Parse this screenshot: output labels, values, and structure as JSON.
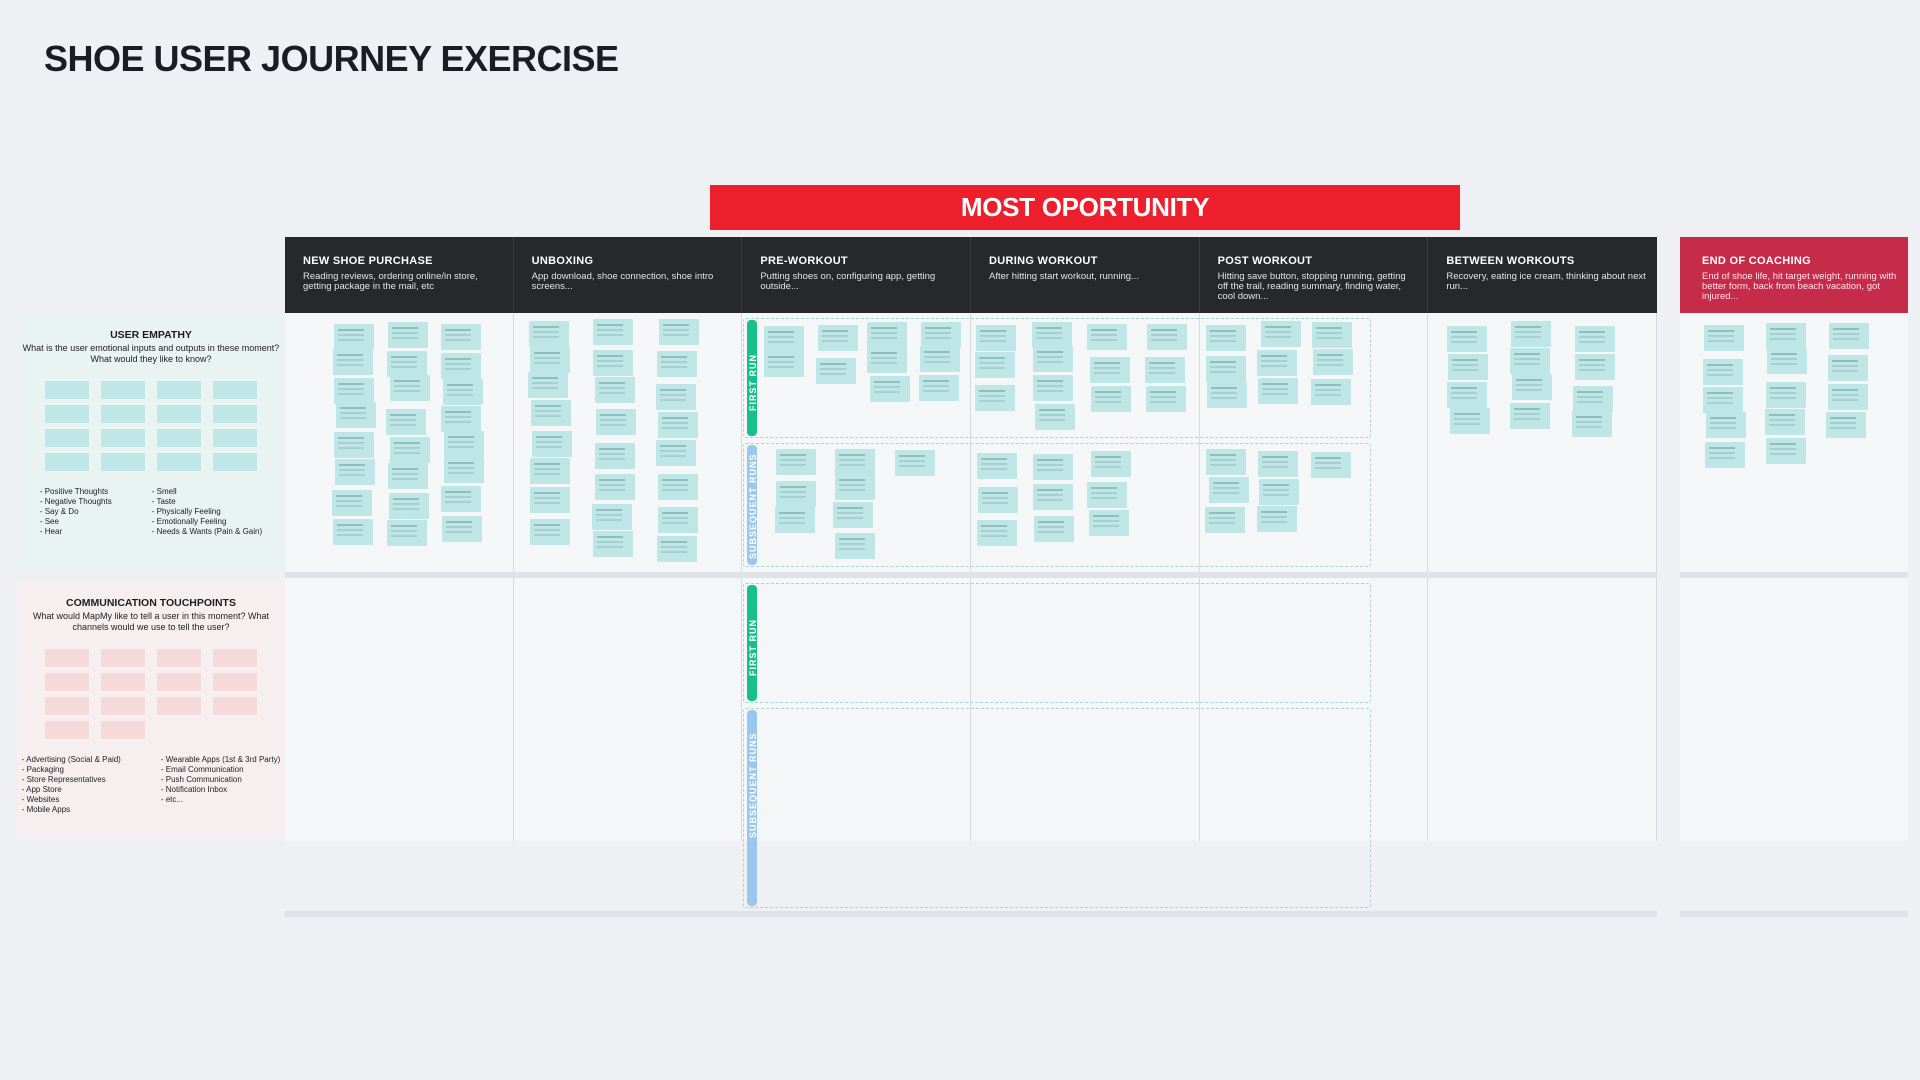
{
  "title": "SHOE USER JOURNEY EXERCISE",
  "banner": "MOST OPORTUNITY",
  "stages": [
    {
      "title": "NEW SHOE PURCHASE",
      "desc": "Reading reviews, ordering online/in store, getting package in the mail, etc"
    },
    {
      "title": "UNBOXING",
      "desc": "App download, shoe connection, shoe intro screens..."
    },
    {
      "title": "PRE-WORKOUT",
      "desc": "Putting shoes on, configuring app, getting outside..."
    },
    {
      "title": "DURING WORKOUT",
      "desc": "After hitting start workout, running..."
    },
    {
      "title": "POST WORKOUT",
      "desc": "Hitting save button, stopping running, getting off the trail, reading summary, finding water, cool down..."
    },
    {
      "title": "BETWEEN WORKOUTS",
      "desc": "Recovery, eating ice cream, thinking about next run..."
    }
  ],
  "end_stage": {
    "title": "END OF COACHING",
    "desc": "End of shoe life, hit target weight, running with better form, back from beach vacation, got injured..."
  },
  "empathy": {
    "title": "USER EMPATHY",
    "subtitle": "What is the user emotional inputs and outputs in these moment? What would they like to know?",
    "bullets_left": [
      "Positive Thoughts",
      "Negative Thoughts",
      "Say & Do",
      "See",
      "Hear"
    ],
    "bullets_right": [
      "Smell",
      "Taste",
      "Physically Feeling",
      "Emotionally Feeling",
      "Needs & Wants (Pain & Gain)"
    ]
  },
  "communication": {
    "title": "COMMUNICATION TOUCHPOINTS",
    "subtitle": "What would MapMy like to tell a user in this moment? What channels would we use to tell the user?",
    "bullets_left": [
      "Advertising (Social & Paid)",
      "Packaging",
      "Store Representatives",
      "App Store",
      "Websites",
      "Mobile Apps"
    ],
    "bullets_right": [
      "Wearable Apps (1st & 3rd Party)",
      "Email Communication",
      "Push Communication",
      "Notification Inbox",
      "etc..."
    ]
  },
  "lane_labels": {
    "first": "FIRST RUN",
    "subsequent": "SUBSEQUENT RUNS"
  },
  "colors": {
    "banner": "#ee1f2c",
    "header": "#26282c",
    "end_header": "#c72b4a",
    "sticky": "#bfe6e6",
    "first_tag": "#18c089",
    "subsequent_tag": "#9ac7ee"
  }
}
